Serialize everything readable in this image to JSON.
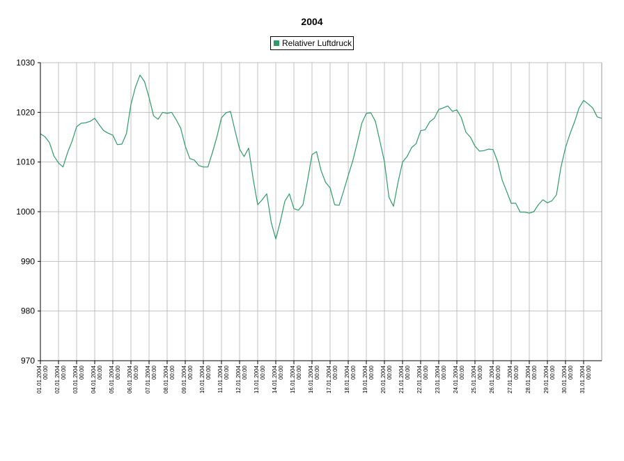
{
  "chart_data": {
    "type": "line",
    "title": "2004",
    "xlabel": "",
    "ylabel": "",
    "ylim": [
      970,
      1030
    ],
    "yticks": [
      "970",
      "980",
      "990",
      "1000",
      "1010",
      "1020",
      "1030"
    ],
    "xticks": [
      [
        "01.01.2004",
        "00:00"
      ],
      [
        "02.01.2004",
        "00:00"
      ],
      [
        "03.01.2004",
        "00:00"
      ],
      [
        "04.01.2004",
        "00:00"
      ],
      [
        "05.01.2004",
        "00:00"
      ],
      [
        "06.01.2004",
        "00:00"
      ],
      [
        "07.01.2004",
        "00:00"
      ],
      [
        "08.01.2004",
        "00:00"
      ],
      [
        "09.01.2004",
        "00:00"
      ],
      [
        "10.01.2004",
        "00:00"
      ],
      [
        "11.01.2004",
        "00:00"
      ],
      [
        "12.01.2004",
        "00:00"
      ],
      [
        "13.01.2004",
        "00:00"
      ],
      [
        "14.01.2004",
        "00:00"
      ],
      [
        "15.01.2004",
        "00:00"
      ],
      [
        "16.01.2004",
        "00:00"
      ],
      [
        "17.01.2004",
        "00:00"
      ],
      [
        "18.01.2004",
        "00:00"
      ],
      [
        "19.01.2004",
        "00:00"
      ],
      [
        "20.01.2004",
        "00:00"
      ],
      [
        "21.01.2004",
        "00:00"
      ],
      [
        "22.01.2004",
        "00:00"
      ],
      [
        "23.01.2004",
        "00:00"
      ],
      [
        "24.01.2004",
        "00:00"
      ],
      [
        "25.01.2004",
        "00:00"
      ],
      [
        "26.01.2004",
        "00:00"
      ],
      [
        "27.01.2004",
        "00:00"
      ],
      [
        "28.01.2004",
        "00:00"
      ],
      [
        "29.01.2004",
        "00:00"
      ],
      [
        "30.01.2004",
        "00:00"
      ],
      [
        "31.01.2004",
        "00:00"
      ]
    ],
    "xlim": [
      "01.01.2004 00:00",
      "01.02.2004 00:00"
    ],
    "grid": true,
    "legend_position": "top-center",
    "series": [
      {
        "name": "Relativer Luftdruck",
        "color": "#2e9a6a",
        "points": [
          [
            "01.01.2004 00:00",
            1015.7
          ],
          [
            "01.01.2004 06:00",
            1015.1
          ],
          [
            "01.01.2004 12:00",
            1013.9
          ],
          [
            "01.01.2004 18:00",
            1011.2
          ],
          [
            "02.01.2004 00:00",
            1009.8
          ],
          [
            "02.01.2004 06:00",
            1009.0
          ],
          [
            "02.01.2004 12:00",
            1011.9
          ],
          [
            "02.01.2004 18:00",
            1014.2
          ],
          [
            "03.01.2004 00:00",
            1017.1
          ],
          [
            "03.01.2004 06:00",
            1017.8
          ],
          [
            "03.01.2004 12:00",
            1017.9
          ],
          [
            "03.01.2004 18:00",
            1018.2
          ],
          [
            "04.01.2004 00:00",
            1018.8
          ],
          [
            "04.01.2004 06:00",
            1017.5
          ],
          [
            "04.01.2004 12:00",
            1016.3
          ],
          [
            "04.01.2004 18:00",
            1015.8
          ],
          [
            "05.01.2004 00:00",
            1015.4
          ],
          [
            "05.01.2004 06:00",
            1013.5
          ],
          [
            "05.01.2004 12:00",
            1013.6
          ],
          [
            "05.01.2004 18:00",
            1015.7
          ],
          [
            "06.01.2004 00:00",
            1021.6
          ],
          [
            "06.01.2004 06:00",
            1025.1
          ],
          [
            "06.01.2004 12:00",
            1027.5
          ],
          [
            "06.01.2004 18:00",
            1026.2
          ],
          [
            "07.01.2004 00:00",
            1023.0
          ],
          [
            "07.01.2004 06:00",
            1019.3
          ],
          [
            "07.01.2004 12:00",
            1018.6
          ],
          [
            "07.01.2004 18:00",
            1020.0
          ],
          [
            "08.01.2004 00:00",
            1019.8
          ],
          [
            "08.01.2004 06:00",
            1020.0
          ],
          [
            "08.01.2004 12:00",
            1018.5
          ],
          [
            "08.01.2004 18:00",
            1016.8
          ],
          [
            "09.01.2004 00:00",
            1013.2
          ],
          [
            "09.01.2004 06:00",
            1010.7
          ],
          [
            "09.01.2004 12:00",
            1010.4
          ],
          [
            "09.01.2004 18:00",
            1009.3
          ],
          [
            "10.01.2004 00:00",
            1009.0
          ],
          [
            "10.01.2004 06:00",
            1009.0
          ],
          [
            "10.01.2004 12:00",
            1011.9
          ],
          [
            "10.01.2004 18:00",
            1015.1
          ],
          [
            "11.01.2004 00:00",
            1018.9
          ],
          [
            "11.01.2004 06:00",
            1019.9
          ],
          [
            "11.01.2004 12:00",
            1020.2
          ],
          [
            "11.01.2004 18:00",
            1016.3
          ],
          [
            "12.01.2004 00:00",
            1012.6
          ],
          [
            "12.01.2004 06:00",
            1011.1
          ],
          [
            "12.01.2004 12:00",
            1012.8
          ],
          [
            "12.01.2004 18:00",
            1006.6
          ],
          [
            "13.01.2004 00:00",
            1001.4
          ],
          [
            "13.01.2004 06:00",
            1002.4
          ],
          [
            "13.01.2004 12:00",
            1003.6
          ],
          [
            "13.01.2004 18:00",
            997.8
          ],
          [
            "14.01.2004 00:00",
            994.5
          ],
          [
            "14.01.2004 06:00",
            998.0
          ],
          [
            "14.01.2004 12:00",
            1002.1
          ],
          [
            "14.01.2004 18:00",
            1003.6
          ],
          [
            "15.01.2004 00:00",
            1000.6
          ],
          [
            "15.01.2004 06:00",
            1000.3
          ],
          [
            "15.01.2004 12:00",
            1001.4
          ],
          [
            "15.01.2004 18:00",
            1006.2
          ],
          [
            "16.01.2004 00:00",
            1011.5
          ],
          [
            "16.01.2004 06:00",
            1012.1
          ],
          [
            "16.01.2004 12:00",
            1008.3
          ],
          [
            "16.01.2004 18:00",
            1005.9
          ],
          [
            "17.01.2004 00:00",
            1004.8
          ],
          [
            "17.01.2004 06:00",
            1001.4
          ],
          [
            "17.01.2004 12:00",
            1001.3
          ],
          [
            "17.01.2004 18:00",
            1004.2
          ],
          [
            "18.01.2004 00:00",
            1007.3
          ],
          [
            "18.01.2004 06:00",
            1010.2
          ],
          [
            "18.01.2004 12:00",
            1013.9
          ],
          [
            "18.01.2004 18:00",
            1017.8
          ],
          [
            "19.01.2004 00:00",
            1019.8
          ],
          [
            "19.01.2004 06:00",
            1019.9
          ],
          [
            "19.01.2004 12:00",
            1018.2
          ],
          [
            "19.01.2004 18:00",
            1014.2
          ],
          [
            "20.01.2004 00:00",
            1010.1
          ],
          [
            "20.01.2004 06:00",
            1002.9
          ],
          [
            "20.01.2004 12:00",
            1001.1
          ],
          [
            "20.01.2004 18:00",
            1005.9
          ],
          [
            "21.01.2004 00:00",
            1010.0
          ],
          [
            "21.01.2004 06:00",
            1011.1
          ],
          [
            "21.01.2004 12:00",
            1012.9
          ],
          [
            "21.01.2004 18:00",
            1013.7
          ],
          [
            "22.01.2004 00:00",
            1016.3
          ],
          [
            "22.01.2004 06:00",
            1016.5
          ],
          [
            "22.01.2004 12:00",
            1018.1
          ],
          [
            "22.01.2004 18:00",
            1018.8
          ],
          [
            "23.01.2004 00:00",
            1020.6
          ],
          [
            "23.01.2004 06:00",
            1020.9
          ],
          [
            "23.01.2004 12:00",
            1021.3
          ],
          [
            "23.01.2004 18:00",
            1020.2
          ],
          [
            "24.01.2004 00:00",
            1020.5
          ],
          [
            "24.01.2004 06:00",
            1018.9
          ],
          [
            "24.01.2004 12:00",
            1016.0
          ],
          [
            "24.01.2004 18:00",
            1015.0
          ],
          [
            "25.01.2004 00:00",
            1013.2
          ],
          [
            "25.01.2004 06:00",
            1012.2
          ],
          [
            "25.01.2004 12:00",
            1012.3
          ],
          [
            "25.01.2004 18:00",
            1012.6
          ],
          [
            "26.01.2004 00:00",
            1012.5
          ],
          [
            "26.01.2004 06:00",
            1010.1
          ],
          [
            "26.01.2004 12:00",
            1006.4
          ],
          [
            "26.01.2004 18:00",
            1004.1
          ],
          [
            "27.01.2004 00:00",
            1001.7
          ],
          [
            "27.01.2004 06:00",
            1001.7
          ],
          [
            "27.01.2004 12:00",
            999.9
          ],
          [
            "27.01.2004 18:00",
            999.9
          ],
          [
            "28.01.2004 00:00",
            999.7
          ],
          [
            "28.01.2004 06:00",
            1000.0
          ],
          [
            "28.01.2004 12:00",
            1001.4
          ],
          [
            "28.01.2004 18:00",
            1002.4
          ],
          [
            "29.01.2004 00:00",
            1001.8
          ],
          [
            "29.01.2004 06:00",
            1002.2
          ],
          [
            "29.01.2004 12:00",
            1003.4
          ],
          [
            "29.01.2004 18:00",
            1009.0
          ],
          [
            "30.01.2004 00:00",
            1012.9
          ],
          [
            "30.01.2004 06:00",
            1015.7
          ],
          [
            "30.01.2004 12:00",
            1018.1
          ],
          [
            "30.01.2004 18:00",
            1020.9
          ],
          [
            "31.01.2004 00:00",
            1022.4
          ],
          [
            "31.01.2004 06:00",
            1021.7
          ],
          [
            "31.01.2004 12:00",
            1020.9
          ],
          [
            "31.01.2004 18:00",
            1019.1
          ],
          [
            "01.02.2004 00:00",
            1018.8
          ]
        ]
      }
    ]
  }
}
